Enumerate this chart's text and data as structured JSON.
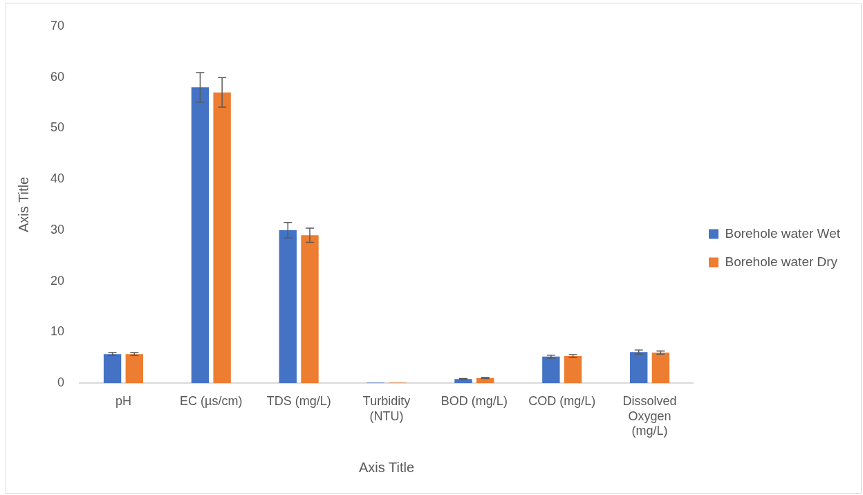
{
  "chart_data": {
    "type": "bar",
    "xlabel": "Axis Title",
    "ylabel": "Axis Title",
    "categories": [
      "pH",
      "EC (µs/cm)",
      "TDS (mg/L)",
      "Turbidity (NTU)",
      "BOD (mg/L)",
      "COD (mg/L)",
      "Dissolved Oxygen (mg/L)"
    ],
    "series": [
      {
        "name": "Borehole water Wet",
        "color": "#4472c4",
        "values": [
          5.7,
          58,
          30,
          0.1,
          0.8,
          5.2,
          6.1
        ],
        "errors": [
          0.3,
          2.9,
          1.5,
          null,
          0.1,
          0.3,
          0.4
        ]
      },
      {
        "name": "Borehole water Dry",
        "color": "#ed7d31",
        "values": [
          5.7,
          57,
          29,
          0.1,
          1.0,
          5.3,
          6.0
        ],
        "errors": [
          0.3,
          2.9,
          1.4,
          null,
          0.1,
          0.3,
          0.3
        ]
      }
    ],
    "ylim": [
      0,
      70
    ],
    "yticks": [
      0,
      10,
      20,
      30,
      40,
      50,
      60,
      70
    ],
    "grid": false,
    "legend": "right"
  }
}
